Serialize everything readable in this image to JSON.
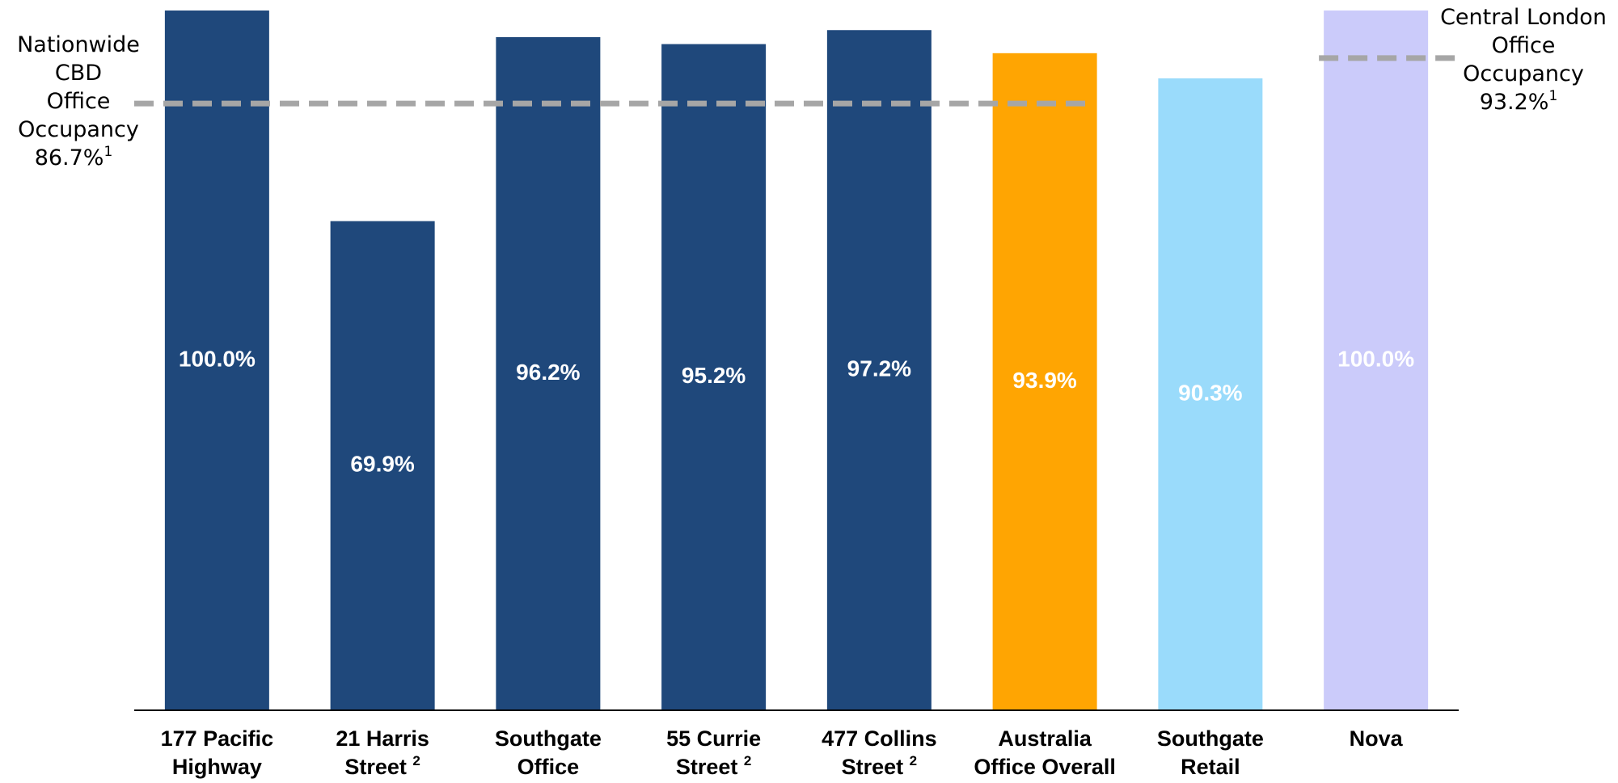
{
  "chart_data": {
    "type": "bar",
    "categories": [
      [
        "177 Pacific",
        "Highway"
      ],
      [
        "21 Harris",
        "Street"
      ],
      [
        "Southgate",
        "Office"
      ],
      [
        "55 Currie",
        "Street"
      ],
      [
        "477 Collins",
        "Street"
      ],
      [
        "Australia",
        "Office Overall"
      ],
      [
        "Southgate",
        "Retail"
      ],
      [
        "Nova"
      ]
    ],
    "category_notes": [
      null,
      "2",
      null,
      "2",
      "2",
      null,
      null,
      null
    ],
    "values": [
      100.0,
      69.9,
      96.2,
      95.2,
      97.2,
      93.9,
      90.3,
      100.0
    ],
    "value_labels": [
      "100.0%",
      "69.9%",
      "96.2%",
      "95.2%",
      "97.2%",
      "93.9%",
      "90.3%",
      "100.0%"
    ],
    "colors": [
      "#1f487b",
      "#1f487b",
      "#1f487b",
      "#1f487b",
      "#1f487b",
      "#ffa502",
      "#9adbfb",
      "#cbcbfa"
    ],
    "ylim": [
      0,
      100
    ],
    "reference_lines": [
      {
        "label": [
          "Nationwide",
          "CBD",
          "Office",
          "Occupancy"
        ],
        "value": 86.7,
        "value_label": "86.7%",
        "note": "1",
        "color": "#a6a6a6",
        "from": 0,
        "to": 5
      },
      {
        "label": [
          "Central London",
          "Office",
          "Occupancy"
        ],
        "value": 93.2,
        "value_label": "93.2%",
        "note": "1",
        "color": "#a6a6a6",
        "from": 7,
        "to": 7
      }
    ]
  }
}
